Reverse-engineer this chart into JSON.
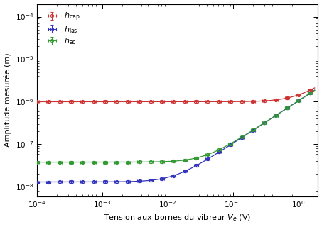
{
  "xlabel": "Tension aux bornes du vibreur $V_e$ (V)",
  "ylabel": "Amplitude mesurée (m)",
  "xlim": [
    0.0001,
    2.0
  ],
  "ylim": [
    6e-09,
    0.0002
  ],
  "legend_labels": [
    "$h_\\mathrm{cap}$",
    "$h_\\mathrm{las}$",
    "$h_\\mathrm{ac}$"
  ],
  "colors": [
    "#cc3333",
    "#3333bb",
    "#339933"
  ],
  "noise_cap": 1e-06,
  "noise_las": 1.3e-08,
  "noise_ac": 3.8e-08,
  "sens_cap": 1.05e-06,
  "sens_las": 1.05e-06,
  "sens_ac": 1.05e-06,
  "figsize": [
    4.53,
    3.2
  ],
  "dpi": 100
}
